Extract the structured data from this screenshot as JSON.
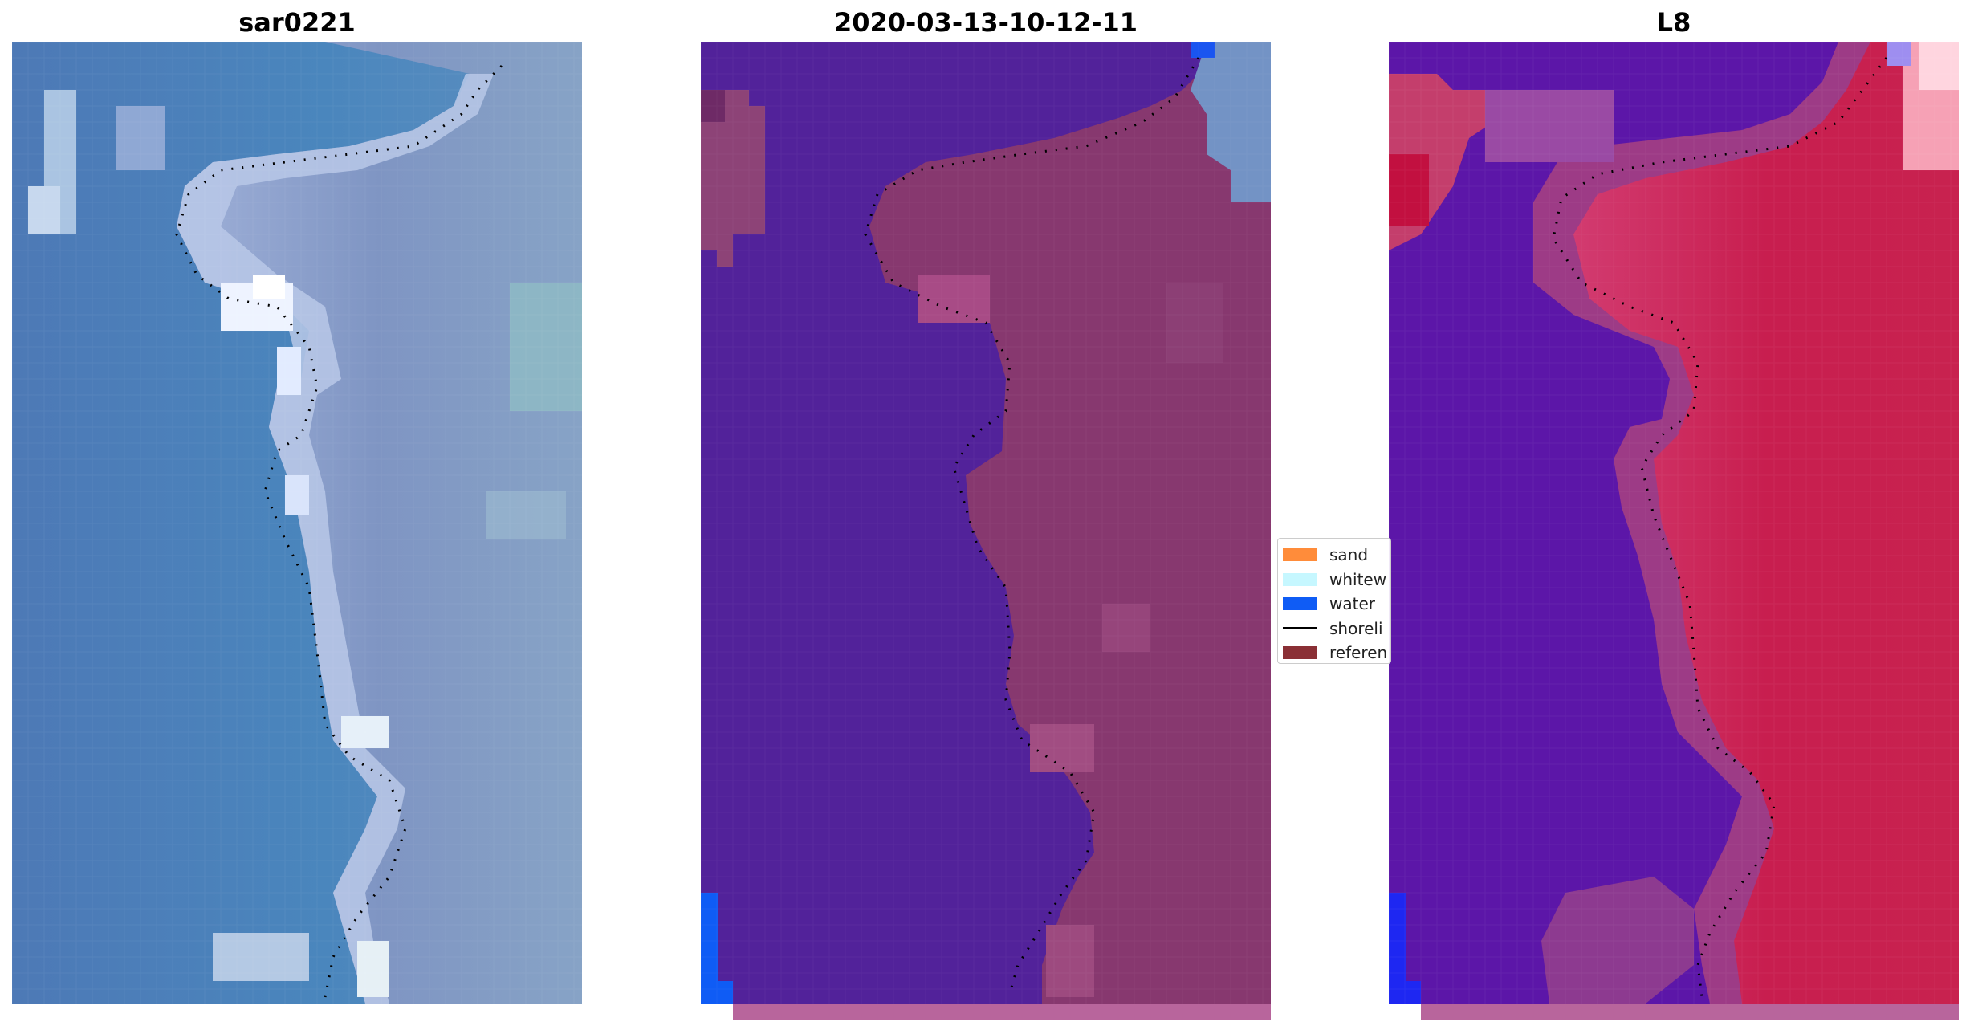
{
  "panels": [
    {
      "title": "sar0221"
    },
    {
      "title": "2020-03-13-10-12-11"
    },
    {
      "title": "L8"
    }
  ],
  "legend": {
    "items": [
      {
        "label": "sand",
        "color": "#ff8c3a",
        "kind": "patch"
      },
      {
        "label": "whitew",
        "color": "#c6f7ff",
        "kind": "patch"
      },
      {
        "label": "water",
        "color": "#0f5cf5",
        "kind": "patch"
      },
      {
        "label": "shoreli",
        "color": "#000000",
        "kind": "line"
      },
      {
        "label": "referen",
        "color": "#8a2f35",
        "kind": "patch"
      }
    ]
  },
  "colors": {
    "rgb_water": "#4a7fb8",
    "rgb_land": "#7d92c0",
    "rgb_whitewater": "#e7eef8",
    "class_water": "#51229a",
    "class_land": "#88386f",
    "class_blue": "#0f5cf5",
    "reference_strip": "#b8659c",
    "ndwi_water": "#5a15a8",
    "ndwi_land": "#c71f4f",
    "ndwi_edge": "#a5427e"
  }
}
